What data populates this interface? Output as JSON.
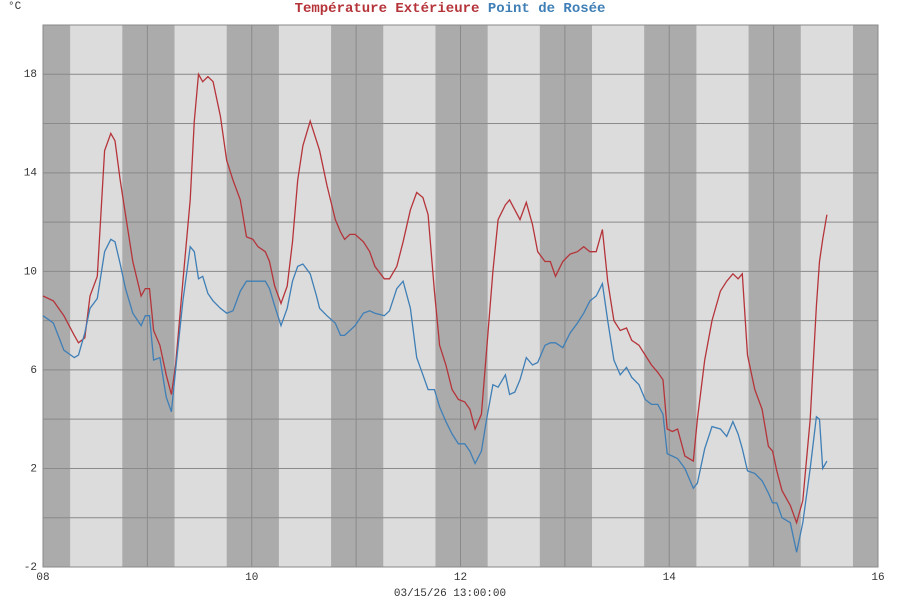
{
  "chart_data": {
    "type": "line",
    "unit": "°C",
    "xlabel": "03/15/26 13:00:00",
    "xlim": [
      8,
      16
    ],
    "ylim": [
      -2,
      20
    ],
    "xticks": [
      {
        "value": 8,
        "label": "08"
      },
      10,
      12,
      14,
      16
    ],
    "xgrid": [
      9,
      11,
      13,
      15
    ],
    "yticks": [
      -2,
      2,
      6,
      10,
      14,
      18
    ],
    "ygrid": [
      0,
      4,
      8,
      12,
      16
    ],
    "grid": true,
    "x": [
      8.0,
      8.1,
      8.2,
      8.3,
      8.34,
      8.4,
      8.45,
      8.52,
      8.59,
      8.65,
      8.69,
      8.74,
      8.79,
      8.86,
      8.94,
      8.98,
      9.02,
      9.06,
      9.12,
      9.18,
      9.23,
      9.27,
      9.34,
      9.41,
      9.45,
      9.49,
      9.53,
      9.58,
      9.63,
      9.7,
      9.76,
      9.82,
      9.89,
      9.95,
      10.01,
      10.06,
      10.13,
      10.17,
      10.22,
      10.28,
      10.34,
      10.39,
      10.44,
      10.49,
      10.56,
      10.62,
      10.65,
      10.72,
      10.8,
      10.85,
      10.89,
      10.94,
      10.99,
      11.07,
      11.13,
      11.18,
      11.27,
      11.32,
      11.39,
      11.45,
      11.52,
      11.58,
      11.64,
      11.69,
      11.75,
      11.8,
      11.86,
      11.92,
      11.98,
      12.04,
      12.09,
      12.14,
      12.2,
      12.25,
      12.31,
      12.36,
      12.43,
      12.47,
      12.52,
      12.57,
      12.63,
      12.69,
      12.74,
      12.81,
      12.86,
      12.91,
      12.98,
      13.05,
      13.12,
      13.18,
      13.24,
      13.3,
      13.36,
      13.41,
      13.47,
      13.53,
      13.59,
      13.64,
      13.71,
      13.77,
      13.83,
      13.89,
      13.94,
      13.98,
      14.03,
      14.08,
      14.15,
      14.23,
      14.27,
      14.34,
      14.41,
      14.49,
      14.55,
      14.61,
      14.66,
      14.7,
      14.75,
      14.82,
      14.89,
      14.95,
      14.99,
      15.03,
      15.08,
      15.16,
      15.22,
      15.28,
      15.35,
      15.41,
      15.44,
      15.47,
      15.51
    ],
    "series": [
      {
        "name": "Température Extérieure",
        "color": "#b5343a",
        "values": [
          9.0,
          8.8,
          8.2,
          7.4,
          7.1,
          7.3,
          9.0,
          9.8,
          14.9,
          15.6,
          15.3,
          13.7,
          12.3,
          10.4,
          9.0,
          9.3,
          9.3,
          7.6,
          7.0,
          5.8,
          5.0,
          6.2,
          9.6,
          12.9,
          16.1,
          18.0,
          17.7,
          17.9,
          17.7,
          16.3,
          14.5,
          13.7,
          12.9,
          11.4,
          11.3,
          11.0,
          10.8,
          10.4,
          9.4,
          8.7,
          9.4,
          11.2,
          13.7,
          15.1,
          16.1,
          15.3,
          14.9,
          13.5,
          12.1,
          11.6,
          11.3,
          11.5,
          11.5,
          11.2,
          10.8,
          10.2,
          9.7,
          9.7,
          10.2,
          11.2,
          12.5,
          13.2,
          13.0,
          12.3,
          9.2,
          7.0,
          6.2,
          5.2,
          4.8,
          4.7,
          4.4,
          3.6,
          4.2,
          6.8,
          10.0,
          12.1,
          12.7,
          12.9,
          12.5,
          12.1,
          12.8,
          11.9,
          10.8,
          10.4,
          10.4,
          9.8,
          10.4,
          10.7,
          10.8,
          11.0,
          10.8,
          10.8,
          11.7,
          9.6,
          8.0,
          7.6,
          7.7,
          7.2,
          7.0,
          6.6,
          6.2,
          5.9,
          5.6,
          3.6,
          3.5,
          3.6,
          2.5,
          2.3,
          4.0,
          6.4,
          8.0,
          9.2,
          9.6,
          9.9,
          9.7,
          9.9,
          6.6,
          5.2,
          4.4,
          2.9,
          2.7,
          1.9,
          1.1,
          0.5,
          -0.2,
          0.7,
          4.0,
          8.6,
          10.4,
          11.3,
          12.3
        ]
      },
      {
        "name": "Point de Rosée",
        "color": "#3f7fb6",
        "values": [
          8.2,
          7.9,
          6.8,
          6.5,
          6.6,
          7.5,
          8.5,
          8.9,
          10.8,
          11.3,
          11.2,
          10.3,
          9.3,
          8.3,
          7.8,
          8.2,
          8.2,
          6.4,
          6.5,
          4.9,
          4.3,
          6.0,
          8.8,
          11.0,
          10.8,
          9.7,
          9.8,
          9.1,
          8.8,
          8.5,
          8.3,
          8.4,
          9.2,
          9.6,
          9.6,
          9.6,
          9.6,
          9.3,
          8.6,
          7.8,
          8.5,
          9.6,
          10.2,
          10.3,
          9.9,
          9.0,
          8.5,
          8.2,
          7.9,
          7.4,
          7.4,
          7.6,
          7.8,
          8.3,
          8.4,
          8.3,
          8.2,
          8.4,
          9.3,
          9.6,
          8.5,
          6.5,
          5.8,
          5.2,
          5.2,
          4.5,
          3.9,
          3.4,
          3.0,
          3.0,
          2.7,
          2.2,
          2.7,
          4.0,
          5.4,
          5.3,
          5.8,
          5.0,
          5.1,
          5.6,
          6.5,
          6.2,
          6.3,
          7.0,
          7.1,
          7.1,
          6.9,
          7.5,
          7.9,
          8.3,
          8.8,
          9.0,
          9.5,
          8.0,
          6.4,
          5.8,
          6.1,
          5.7,
          5.4,
          4.8,
          4.6,
          4.6,
          4.2,
          2.6,
          2.5,
          2.4,
          2.0,
          1.2,
          1.4,
          2.8,
          3.7,
          3.6,
          3.3,
          3.9,
          3.4,
          2.8,
          1.9,
          1.8,
          1.5,
          1.0,
          0.6,
          0.6,
          0.0,
          -0.2,
          -1.4,
          -0.2,
          2.0,
          4.1,
          4.0,
          2.0,
          2.3
        ]
      }
    ]
  }
}
